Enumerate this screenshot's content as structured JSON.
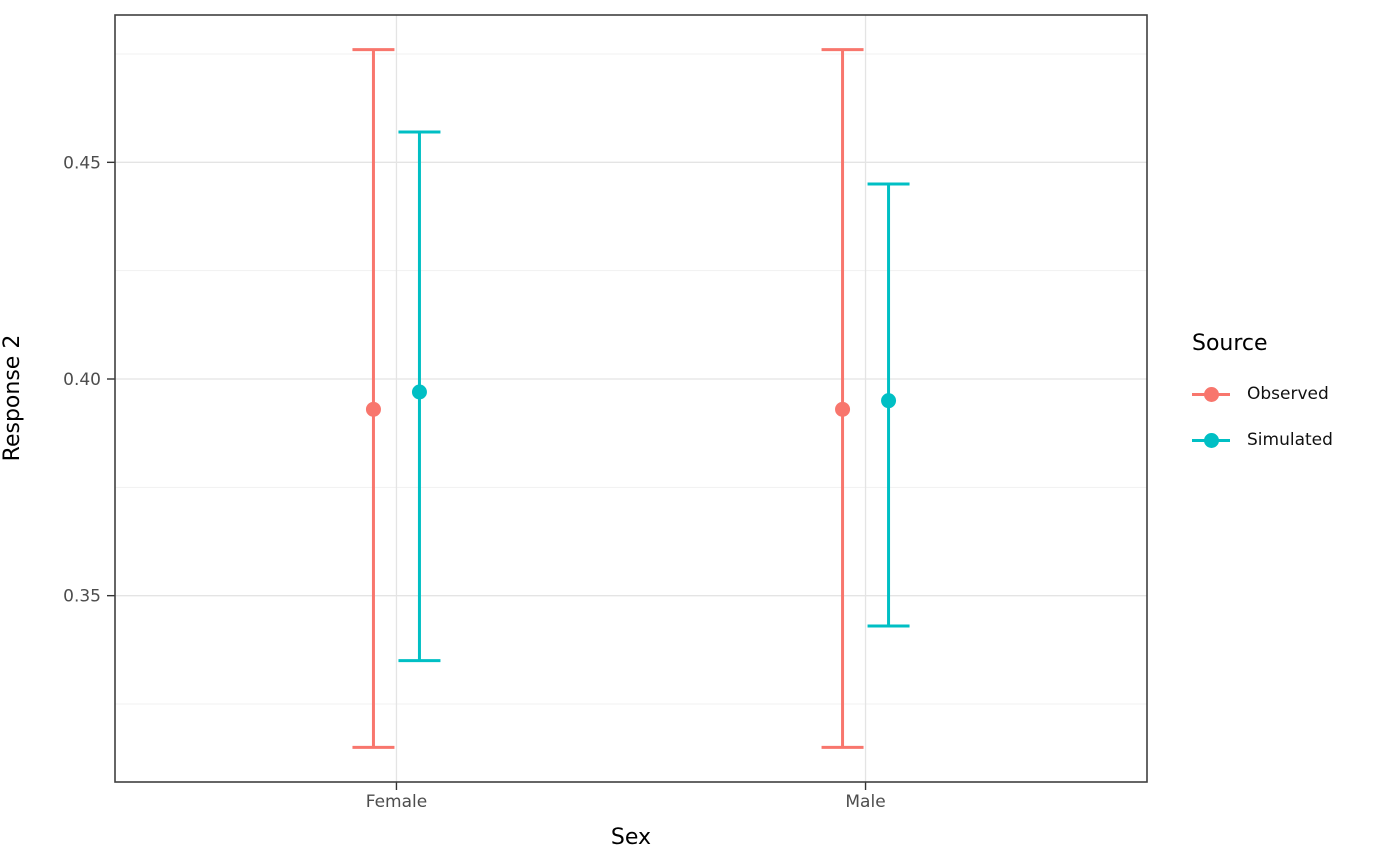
{
  "chart_data": {
    "type": "pointrange",
    "xlabel": "Sex",
    "ylabel": "Response 2",
    "categories": [
      "Female",
      "Male"
    ],
    "y_ticks": [
      {
        "value": 0.35,
        "label": "0.35"
      },
      {
        "value": 0.4,
        "label": "0.40"
      },
      {
        "value": 0.45,
        "label": "0.45"
      }
    ],
    "y_minor_ticks": [
      0.325,
      0.375,
      0.425,
      0.475
    ],
    "ylim": [
      0.307,
      0.484
    ],
    "grid": true,
    "legend": {
      "position": "right",
      "title": "Source",
      "entries": [
        {
          "label": "Observed",
          "color": "#F8766D"
        },
        {
          "label": "Simulated",
          "color": "#00BFC4"
        }
      ]
    },
    "series": [
      {
        "name": "Observed",
        "color": "#F8766D",
        "points": [
          {
            "x": "Female",
            "y": 0.393,
            "ymin": 0.315,
            "ymax": 0.476
          },
          {
            "x": "Male",
            "y": 0.393,
            "ymin": 0.315,
            "ymax": 0.476
          }
        ]
      },
      {
        "name": "Simulated",
        "color": "#00BFC4",
        "points": [
          {
            "x": "Female",
            "y": 0.397,
            "ymin": 0.335,
            "ymax": 0.457
          },
          {
            "x": "Male",
            "y": 0.395,
            "ymin": 0.343,
            "ymax": 0.445
          }
        ]
      }
    ]
  },
  "style_colors": {
    "axis_text": "#4D4D4D",
    "panel_border": "#404040",
    "tick_mark": "#333333",
    "grid_major": "#E4E4E4",
    "grid_minor": "#F1F1F1"
  }
}
